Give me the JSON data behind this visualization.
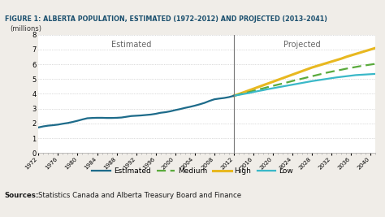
{
  "title": "FIGURE 1: ALBERTA POPULATION, ESTIMATED (1972–2012) AND PROJECTED (2013–2041)",
  "ylabel": "(millions)",
  "ylim": [
    0,
    8
  ],
  "yticks": [
    0,
    1,
    2,
    3,
    4,
    5,
    6,
    7,
    8
  ],
  "divider_year": 2012,
  "estimated_label": "Estimated",
  "projected_label": "Projected",
  "estimated_years": [
    1972,
    1973,
    1974,
    1975,
    1976,
    1977,
    1978,
    1979,
    1980,
    1981,
    1982,
    1983,
    1984,
    1985,
    1986,
    1987,
    1988,
    1989,
    1990,
    1991,
    1992,
    1993,
    1994,
    1995,
    1996,
    1997,
    1998,
    1999,
    2000,
    2001,
    2002,
    2003,
    2004,
    2005,
    2006,
    2007,
    2008,
    2009,
    2010,
    2011,
    2012
  ],
  "estimated_values": [
    1.73,
    1.8,
    1.85,
    1.88,
    1.92,
    1.98,
    2.03,
    2.1,
    2.18,
    2.27,
    2.35,
    2.37,
    2.38,
    2.38,
    2.37,
    2.37,
    2.38,
    2.4,
    2.45,
    2.5,
    2.52,
    2.54,
    2.57,
    2.6,
    2.65,
    2.72,
    2.76,
    2.82,
    2.9,
    2.97,
    3.05,
    3.12,
    3.2,
    3.29,
    3.39,
    3.52,
    3.63,
    3.68,
    3.72,
    3.78,
    3.87
  ],
  "projected_years": [
    2012,
    2013,
    2014,
    2015,
    2016,
    2017,
    2018,
    2019,
    2020,
    2021,
    2022,
    2023,
    2024,
    2025,
    2026,
    2027,
    2028,
    2029,
    2030,
    2031,
    2032,
    2033,
    2034,
    2035,
    2036,
    2037,
    2038,
    2039,
    2040,
    2041
  ],
  "high_values": [
    3.87,
    3.98,
    4.1,
    4.22,
    4.34,
    4.46,
    4.58,
    4.7,
    4.82,
    4.94,
    5.06,
    5.18,
    5.3,
    5.42,
    5.54,
    5.66,
    5.78,
    5.88,
    5.98,
    6.08,
    6.18,
    6.28,
    6.38,
    6.5,
    6.6,
    6.7,
    6.8,
    6.9,
    7.0,
    7.1
  ],
  "medium_values": [
    3.87,
    3.95,
    4.03,
    4.11,
    4.2,
    4.29,
    4.37,
    4.46,
    4.54,
    4.62,
    4.7,
    4.78,
    4.87,
    4.95,
    5.03,
    5.11,
    5.19,
    5.27,
    5.35,
    5.43,
    5.5,
    5.57,
    5.63,
    5.7,
    5.76,
    5.82,
    5.88,
    5.93,
    5.98,
    6.03
  ],
  "low_values": [
    3.87,
    3.93,
    3.99,
    4.05,
    4.12,
    4.19,
    4.25,
    4.32,
    4.38,
    4.44,
    4.5,
    4.56,
    4.62,
    4.68,
    4.74,
    4.8,
    4.86,
    4.91,
    4.96,
    5.01,
    5.06,
    5.11,
    5.15,
    5.19,
    5.23,
    5.27,
    5.29,
    5.31,
    5.33,
    5.35
  ],
  "estimated_color": "#1d6b8a",
  "high_color": "#e8b820",
  "medium_color": "#5aaa3c",
  "low_color": "#3ab8c8",
  "divider_color": "#777777",
  "bg_color": "#f0ede8",
  "plot_bg_color": "#ffffff",
  "xtick_years": [
    1972,
    1976,
    1980,
    1984,
    1988,
    1992,
    1996,
    2000,
    2004,
    2008,
    2012,
    2016,
    2020,
    2024,
    2028,
    2032,
    2036,
    2040
  ],
  "title_color": "#1a4f6e",
  "title_bg": "#f0ede8",
  "top_border_color": "#3ab8c8",
  "bottom_border_color": "#3ab8c8",
  "footer_bold": "Sources:",
  "footer_normal": "  Statistics Canada and Alberta Treasury Board and Finance",
  "legend_entries": [
    "Estimated",
    "Medium",
    "High",
    "Low"
  ]
}
